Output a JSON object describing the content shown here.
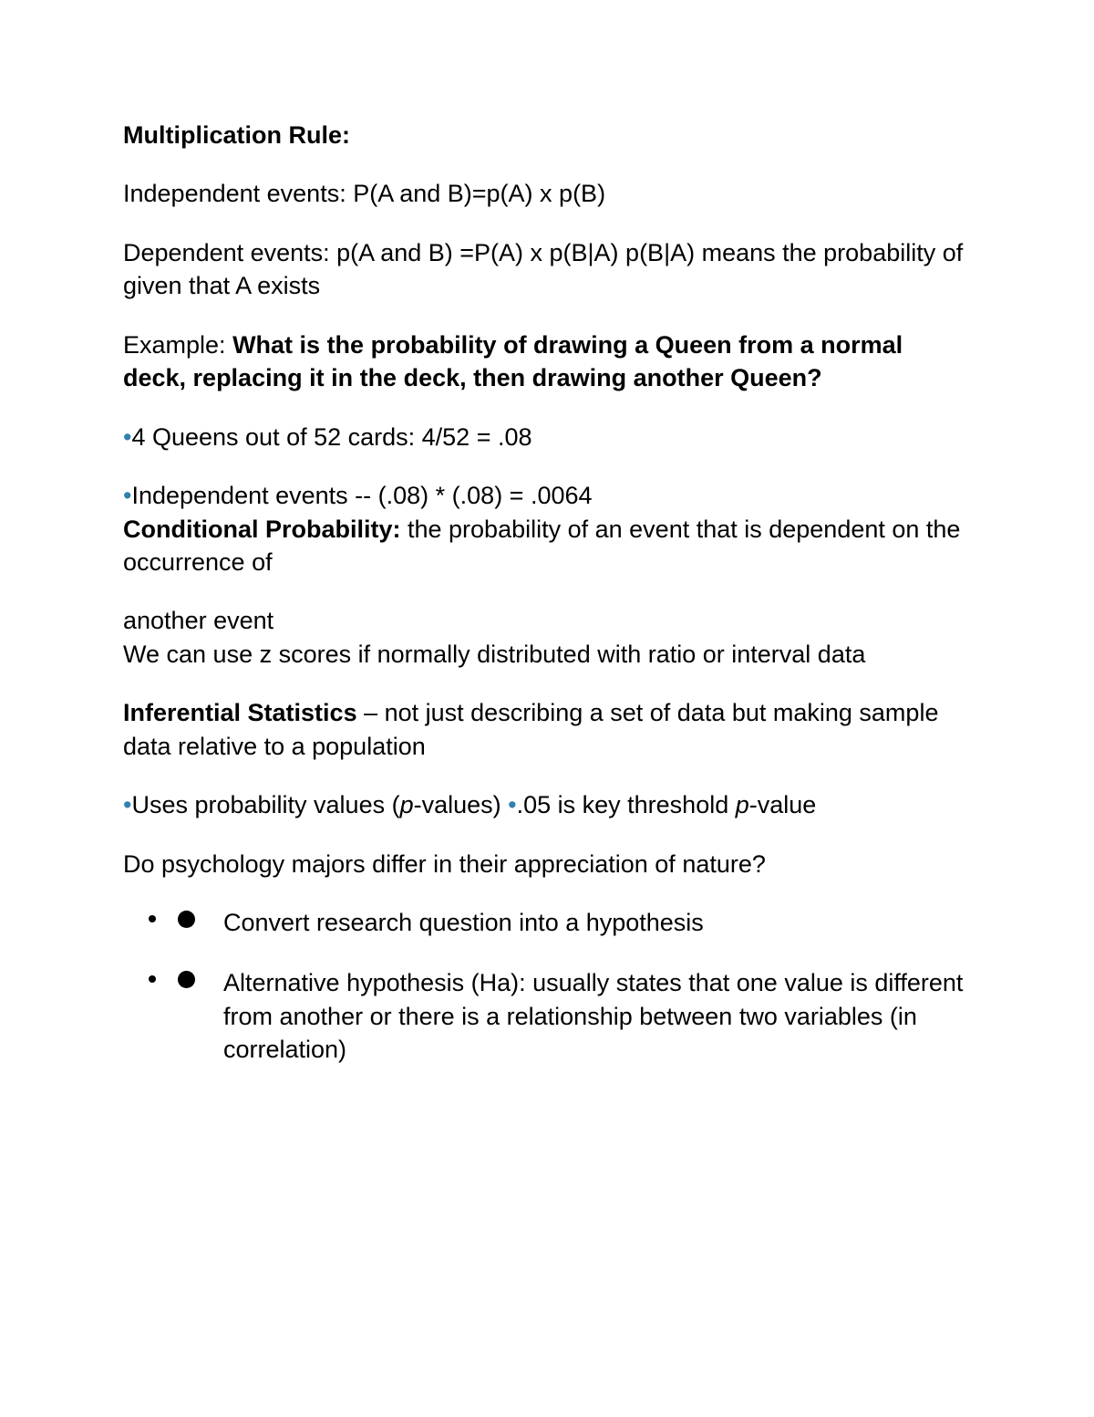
{
  "colors": {
    "text": "#000000",
    "background": "#ffffff",
    "bullet_accent": "#3080b0"
  },
  "typography": {
    "family": "Verdana",
    "body_size_pt": 20,
    "line_height": 1.35,
    "title_weight": 700
  },
  "content": {
    "title": "Multiplication Rule:",
    "independent_line": "Independent events: P(A and B)=p(A) x p(B)",
    "dependent_line": "Dependent events: p(A and B) =P(A) x p(B|A) p(B|A) means the probability of given that A exists",
    "example_prefix": "Example: ",
    "example_bold": "What is the probability of drawing a Queen from a normal deck, replacing it in the deck, then drawing another Queen?",
    "bullet1": "4 Queens out of 52 cards: 4/52 = .08",
    "bullet2": "Independent events -- (.08) * (.08) = .0064",
    "cond_prob_label": "Conditional Probability: ",
    "cond_prob_text": "the probability of an event that is dependent on the occurrence of",
    "another_event_line1": "another event",
    "another_event_line2": "We can use z scores if normally distributed with ratio or interval data",
    "inferential_label": "Inferential Statistics ",
    "inferential_text": "– not just describing a set of data but making sample data relative to a population",
    "pvalue_part1": "Uses probability values (",
    "pvalue_part2": "-values) ",
    "pvalue_part3": ".05 is key threshold ",
    "pvalue_part4": "-value",
    "p_italic": "p",
    "question": "Do psychology majors differ in their appreciation of nature?",
    "list_item1": " Convert research question into a hypothesis",
    "list_item2": " Alternative hypothesis (Ha): usually states that one value is different from another or there is a relationship between two variables (in correlation)"
  }
}
